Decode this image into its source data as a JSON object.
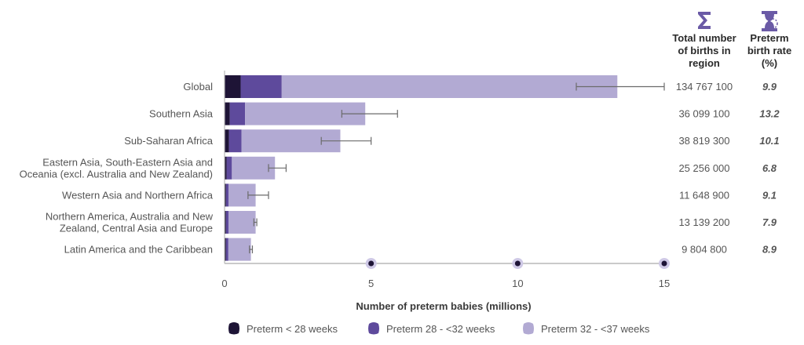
{
  "chart_data": {
    "type": "bar",
    "stacked": true,
    "orientation": "horizontal",
    "categories": [
      [
        "Global"
      ],
      [
        "Southern Asia"
      ],
      [
        "Sub-Saharan Africa"
      ],
      [
        "Eastern Asia, South-Eastern Asia and",
        "Oceania (excl. Australia and New Zealand)"
      ],
      [
        "Western Asia and Northern Africa"
      ],
      [
        "Northern America, Australia and New",
        "Zealand, Central Asia and Europe"
      ],
      [
        "Latin America and the Caribbean"
      ]
    ],
    "series": [
      {
        "name": "Preterm < 28 weeks",
        "color": "#1e1436",
        "values": [
          0.55,
          0.18,
          0.15,
          0.07,
          0.05,
          0.05,
          0.05
        ]
      },
      {
        "name": "Preterm 28 - <32 weeks",
        "color": "#5e4a9c",
        "values": [
          1.4,
          0.52,
          0.43,
          0.18,
          0.09,
          0.09,
          0.08
        ]
      },
      {
        "name": "Preterm 32 - <37 weeks",
        "color": "#b2aad3",
        "values": [
          11.45,
          4.1,
          3.37,
          1.47,
          0.92,
          0.92,
          0.77
        ]
      }
    ],
    "error_bars": [
      [
        12.0,
        15.0
      ],
      [
        4.0,
        5.9
      ],
      [
        3.3,
        5.0
      ],
      [
        1.5,
        2.1
      ],
      [
        0.8,
        1.5
      ],
      [
        1.0,
        1.1
      ],
      [
        0.85,
        0.95
      ]
    ],
    "xlim": [
      0,
      15
    ],
    "xticks": [
      0,
      5,
      10,
      15
    ],
    "xlabel": "Number of preterm babies (millions)",
    "table": {
      "total_header": [
        "Total number",
        "of births in",
        "region"
      ],
      "rate_header": [
        "Preterm",
        "birth rate",
        "(%)"
      ],
      "totals": [
        "134 767 100",
        "36 099 100",
        "38 819 300",
        "25 256 000",
        "11 648 900",
        "13 139 200",
        "9 804 800"
      ],
      "rates": [
        "9.9",
        "13.2",
        "10.1",
        "6.8",
        "9.1",
        "7.9",
        "8.9"
      ]
    },
    "legend_position": "bottom"
  },
  "icons": {
    "total_icon": "sigma-icon",
    "rate_icon": "hourglass-icon",
    "accent": "#6a5aa6"
  }
}
